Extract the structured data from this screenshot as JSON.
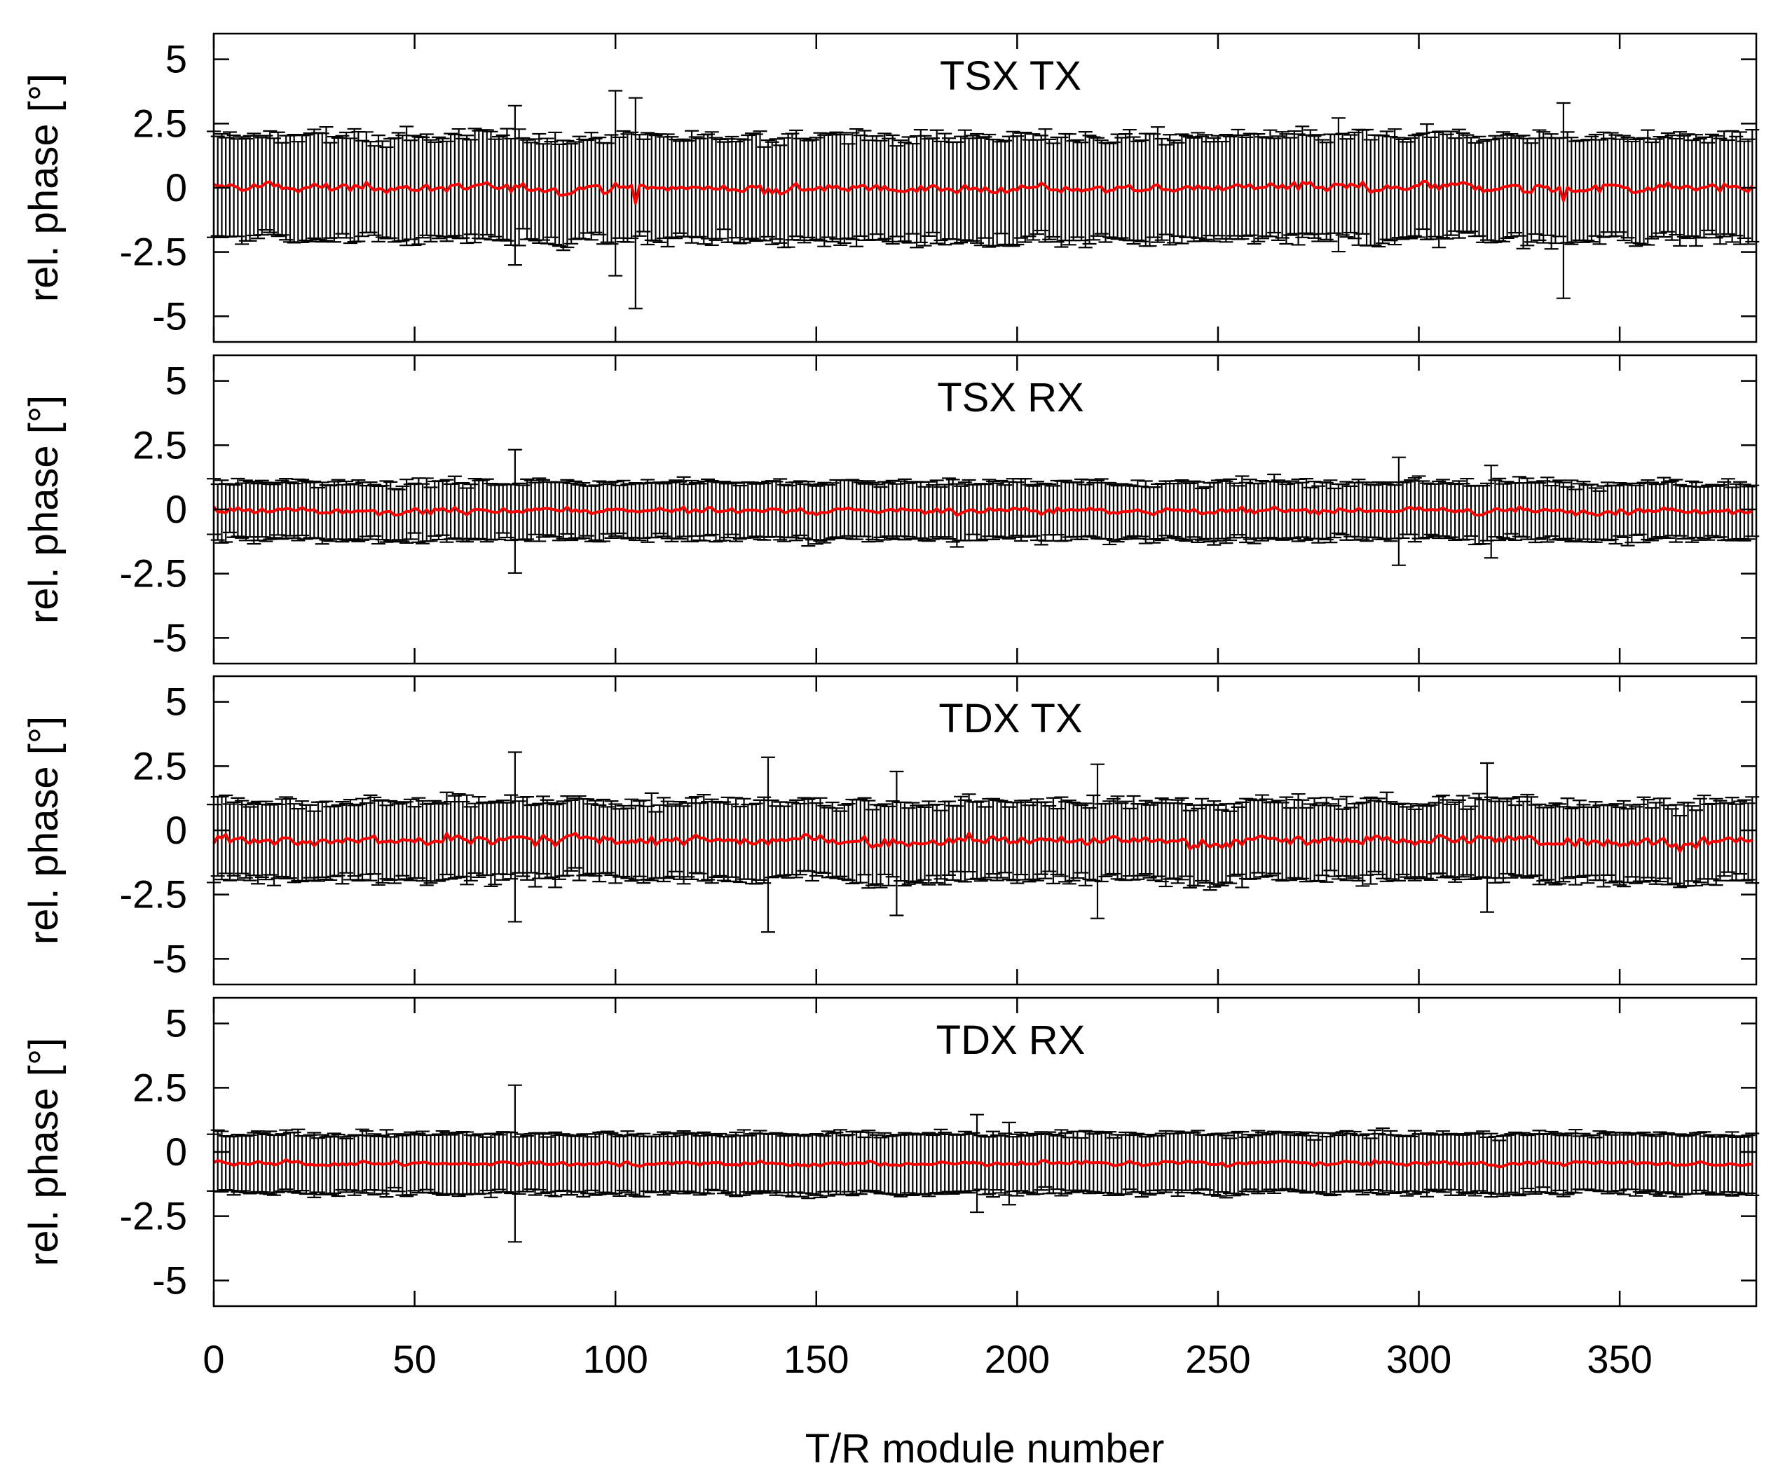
{
  "chart_data": {
    "type": "errorbar",
    "description_free": true,
    "shared_x": {
      "label": "T/R module number",
      "range": [
        0,
        384
      ],
      "ticks": [
        0,
        50,
        100,
        150,
        200,
        250,
        300,
        350
      ],
      "tick_labels": [
        "0",
        "50",
        "100",
        "150",
        "200",
        "250",
        "300",
        "350"
      ]
    },
    "y_axis": {
      "label": "rel. phase [°]",
      "range": [
        -6,
        6
      ],
      "ticks": [
        5,
        2.5,
        0,
        -2.5,
        -5
      ],
      "tick_labels": [
        "5",
        "2.5",
        "0",
        "-2.5",
        "-5"
      ]
    },
    "n_modules": 384,
    "series_color": "#ff0000",
    "errorbar_color": "#000000",
    "panels": [
      {
        "title": "TSX TX",
        "mean_level": 0.0,
        "mean_noise": 0.18,
        "err_base": 2.0,
        "err_spread": 0.35,
        "outliers": [
          {
            "module": 75,
            "err": 3.1
          },
          {
            "module": 100,
            "err": 3.6
          },
          {
            "module": 105,
            "mean": -0.6,
            "err": 4.1
          },
          {
            "module": 280,
            "err": 2.6
          },
          {
            "module": 336,
            "mean": -0.5,
            "err": 3.8
          }
        ]
      },
      {
        "title": "TSX RX",
        "mean_level": -0.05,
        "mean_noise": 0.12,
        "err_base": 1.1,
        "err_spread": 0.2,
        "outliers": [
          {
            "module": 75,
            "err": 2.4
          },
          {
            "module": 295,
            "err": 2.1
          },
          {
            "module": 318,
            "err": 1.8
          }
        ]
      },
      {
        "title": "TDX TX",
        "mean_level": -0.4,
        "mean_noise": 0.2,
        "err_base": 1.5,
        "err_spread": 0.3,
        "outliers": [
          {
            "module": 75,
            "err": 3.3
          },
          {
            "module": 138,
            "err": 3.4
          },
          {
            "module": 170,
            "err": 2.8
          },
          {
            "module": 220,
            "err": 3.0
          },
          {
            "module": 317,
            "err": 2.9
          }
        ]
      },
      {
        "title": "TDX RX",
        "mean_level": -0.45,
        "mean_noise": 0.09,
        "err_base": 1.15,
        "err_spread": 0.18,
        "outliers": [
          {
            "module": 75,
            "mean": -0.45,
            "err": 3.05
          },
          {
            "module": 190,
            "err": 1.9
          },
          {
            "module": 198,
            "err": 1.6
          }
        ]
      }
    ]
  }
}
